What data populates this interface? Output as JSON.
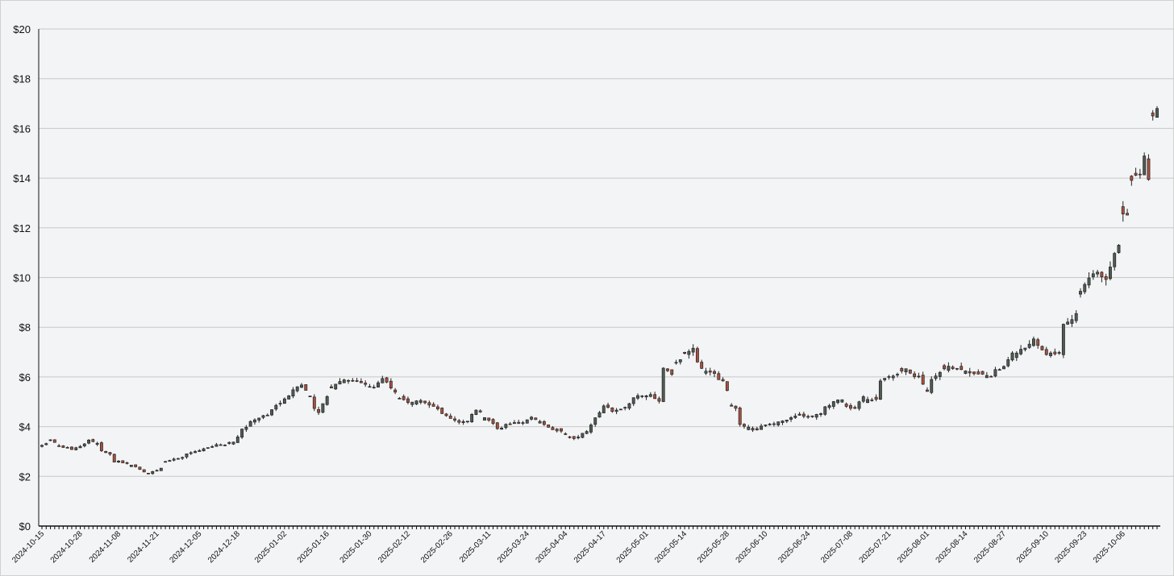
{
  "chart_data": {
    "type": "candlestick",
    "title": "",
    "xlabel": "",
    "ylabel": "",
    "ylim": [
      0,
      20
    ],
    "y_ticks": [
      "$0",
      "$2",
      "$4",
      "$6",
      "$8",
      "$10",
      "$12",
      "$14",
      "$16",
      "$18",
      "$20"
    ],
    "x_tick_labels": [
      "2024-10-15",
      "2024-10-28",
      "2024-11-08",
      "2024-11-21",
      "2024-12-05",
      "2024-12-18",
      "2025-01-02",
      "2025-01-16",
      "2025-01-30",
      "2025-02-12",
      "2025-02-26",
      "2025-03-11",
      "2025-03-24",
      "2025-04-04",
      "2025-04-17",
      "2025-05-01",
      "2025-05-14",
      "2025-05-28",
      "2025-06-10",
      "2025-06-24",
      "2025-07-08",
      "2025-07-21",
      "2025-08-01",
      "2025-08-14",
      "2025-08-27",
      "2025-09-10",
      "2025-09-23",
      "2025-10-06"
    ],
    "grid": "horizontal",
    "colors": {
      "up": "#4e5b52",
      "down": "#a3503f",
      "wick": "#222222",
      "grid": "#c8c8c8",
      "axis": "#111111",
      "background": "#f3f4f6"
    },
    "anchors": [
      [
        "2024-10-15",
        3.25
      ],
      [
        "2024-10-17",
        3.45
      ],
      [
        "2024-10-21",
        3.2
      ],
      [
        "2024-10-24",
        3.1
      ],
      [
        "2024-10-28",
        3.2
      ],
      [
        "2024-10-30",
        3.45
      ],
      [
        "2024-11-01",
        3.35
      ],
      [
        "2024-11-04",
        3.0
      ],
      [
        "2024-11-06",
        2.9
      ],
      [
        "2024-11-07",
        2.6
      ],
      [
        "2024-11-12",
        2.55
      ],
      [
        "2024-11-15",
        2.3
      ],
      [
        "2024-11-19",
        2.15
      ],
      [
        "2024-11-21",
        2.25
      ],
      [
        "2024-11-25",
        2.6
      ],
      [
        "2024-11-29",
        2.75
      ],
      [
        "2024-12-03",
        2.95
      ],
      [
        "2024-12-06",
        3.1
      ],
      [
        "2024-12-11",
        3.25
      ],
      [
        "2024-12-17",
        3.35
      ],
      [
        "2024-12-19",
        3.9
      ],
      [
        "2024-12-24",
        4.3
      ],
      [
        "2024-12-30",
        4.7
      ],
      [
        "2025-01-03",
        5.2
      ],
      [
        "2025-01-06",
        5.5
      ],
      [
        "2025-01-08",
        5.7
      ],
      [
        "2025-01-10",
        5.2
      ],
      [
        "2025-01-14",
        4.6
      ],
      [
        "2025-01-17",
        5.5
      ],
      [
        "2025-01-22",
        5.9
      ],
      [
        "2025-01-27",
        5.8
      ],
      [
        "2025-01-31",
        5.6
      ],
      [
        "2025-02-04",
        5.9
      ],
      [
        "2025-02-07",
        5.4
      ],
      [
        "2025-02-12",
        5.0
      ],
      [
        "2025-02-18",
        5.0
      ],
      [
        "2025-02-24",
        4.5
      ],
      [
        "2025-02-28",
        4.2
      ],
      [
        "2025-03-04",
        4.2
      ],
      [
        "2025-03-06",
        4.7
      ],
      [
        "2025-03-10",
        4.4
      ],
      [
        "2025-03-13",
        3.95
      ],
      [
        "2025-03-18",
        4.1
      ],
      [
        "2025-03-21",
        4.2
      ],
      [
        "2025-03-25",
        4.35
      ],
      [
        "2025-03-28",
        4.1
      ],
      [
        "2025-04-02",
        3.85
      ],
      [
        "2025-04-08",
        3.5
      ],
      [
        "2025-04-14",
        4.1
      ],
      [
        "2025-04-17",
        4.8
      ],
      [
        "2025-04-21",
        4.6
      ],
      [
        "2025-04-25",
        4.9
      ],
      [
        "2025-04-29",
        5.25
      ],
      [
        "2025-05-02",
        5.3
      ],
      [
        "2025-05-06",
        5.0
      ],
      [
        "2025-05-07",
        6.3
      ],
      [
        "2025-05-09",
        6.1
      ],
      [
        "2025-05-14",
        6.9
      ],
      [
        "2025-05-16",
        7.1
      ],
      [
        "2025-05-21",
        6.2
      ],
      [
        "2025-05-27",
        5.9
      ],
      [
        "2025-05-29",
        4.9
      ],
      [
        "2025-06-02",
        4.1
      ],
      [
        "2025-06-06",
        3.85
      ],
      [
        "2025-06-11",
        4.1
      ],
      [
        "2025-06-17",
        4.3
      ],
      [
        "2025-06-20",
        4.55
      ],
      [
        "2025-06-24",
        4.4
      ],
      [
        "2025-06-27",
        4.5
      ],
      [
        "2025-07-01",
        4.9
      ],
      [
        "2025-07-03",
        5.1
      ],
      [
        "2025-07-09",
        4.7
      ],
      [
        "2025-07-11",
        5.2
      ],
      [
        "2025-07-16",
        5.1
      ],
      [
        "2025-07-17",
        5.9
      ],
      [
        "2025-07-22",
        6.0
      ],
      [
        "2025-07-25",
        6.3
      ],
      [
        "2025-07-30",
        6.0
      ],
      [
        "2025-08-01",
        5.4
      ],
      [
        "2025-08-05",
        6.1
      ],
      [
        "2025-08-08",
        6.5
      ],
      [
        "2025-08-12",
        6.3
      ],
      [
        "2025-08-18",
        6.1
      ],
      [
        "2025-08-22",
        6.0
      ],
      [
        "2025-08-27",
        6.4
      ],
      [
        "2025-08-29",
        6.9
      ],
      [
        "2025-09-03",
        7.1
      ],
      [
        "2025-09-05",
        7.6
      ],
      [
        "2025-09-08",
        7.3
      ],
      [
        "2025-09-10",
        6.9
      ],
      [
        "2025-09-15",
        7.0
      ],
      [
        "2025-09-16",
        8.1
      ],
      [
        "2025-09-19",
        8.5
      ],
      [
        "2025-09-23",
        9.8
      ],
      [
        "2025-09-26",
        10.3
      ],
      [
        "2025-09-30",
        10.0
      ],
      [
        "2025-10-02",
        11.0
      ],
      [
        "2025-10-06",
        12.6
      ],
      [
        "2025-10-07",
        12.5
      ],
      [
        "2025-10-08",
        13.9
      ],
      [
        "2025-10-13",
        14.8
      ],
      [
        "2025-10-14",
        13.8
      ],
      [
        "2025-10-15",
        16.6
      ],
      [
        "2025-10-16",
        16.8
      ]
    ]
  }
}
